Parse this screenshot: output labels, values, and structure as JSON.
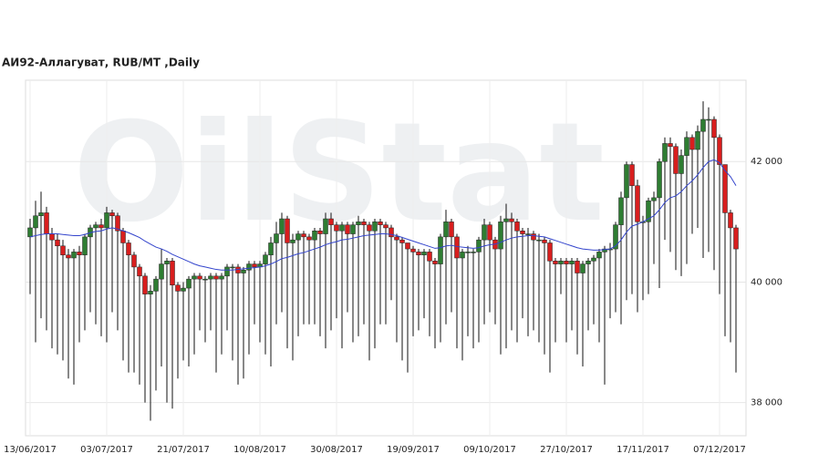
{
  "chart_data": {
    "type": "candlestick",
    "title": "АИ92-Аллагуват,  RUB/MT ,Daily",
    "watermark": "OilStat",
    "categories": [
      "13/06/2017",
      null,
      null,
      null,
      null,
      null,
      null,
      null,
      null,
      null,
      null,
      null,
      null,
      null,
      "03/07/2017",
      null,
      null,
      null,
      null,
      null,
      null,
      null,
      null,
      null,
      null,
      null,
      null,
      null,
      "21/07/2017",
      null,
      null,
      null,
      null,
      null,
      null,
      null,
      null,
      null,
      null,
      null,
      null,
      null,
      "10/08/2017",
      null,
      null,
      null,
      null,
      null,
      null,
      null,
      null,
      null,
      null,
      null,
      null,
      null,
      "30/08/2017",
      null,
      null,
      null,
      null,
      null,
      null,
      null,
      null,
      null,
      null,
      null,
      null,
      null,
      "19/09/2017",
      null,
      null,
      null,
      null,
      null,
      null,
      null,
      null,
      null,
      null,
      null,
      null,
      null,
      "09/10/2017",
      null,
      null,
      null,
      null,
      null,
      null,
      null,
      null,
      null,
      null,
      null,
      null,
      null,
      "27/10/2017",
      null,
      null,
      null,
      null,
      null,
      null,
      null,
      null,
      null,
      null,
      null,
      null,
      null,
      "17/11/2017",
      null,
      null,
      null,
      null,
      null,
      null,
      null,
      null,
      null,
      null,
      null,
      null,
      null,
      "07/12/2017",
      null,
      null,
      null
    ],
    "open": [
      40750,
      40900,
      41100,
      41150,
      40800,
      40700,
      40600,
      40450,
      40400,
      40500,
      40450,
      40750,
      40900,
      40950,
      40900,
      41150,
      41100,
      40850,
      40650,
      40450,
      40250,
      40100,
      39800,
      39850,
      40050,
      40300,
      40350,
      39950,
      39850,
      39900,
      40050,
      40100,
      40050,
      40050,
      40100,
      40050,
      40100,
      40250,
      40250,
      40150,
      40200,
      40300,
      40250,
      40300,
      40450,
      40650,
      40800,
      41050,
      40650,
      40700,
      40800,
      40750,
      40700,
      40850,
      40800,
      41050,
      40950,
      40850,
      40950,
      40800,
      40950,
      41000,
      40950,
      40850,
      41000,
      40950,
      40900,
      40750,
      40700,
      40650,
      40550,
      40500,
      40450,
      40500,
      40350,
      40300,
      40750,
      41000,
      40750,
      40400,
      40500,
      40500,
      40500,
      40700,
      40950,
      40700,
      40550,
      41000,
      41050,
      41000,
      40850,
      40800,
      40800,
      40700,
      40700,
      40650,
      40350,
      40300,
      40350,
      40300,
      40350,
      40150,
      40300,
      40350,
      40400,
      40500,
      40550,
      40550,
      40950,
      41400,
      41950,
      41600,
      41000,
      41000,
      41350,
      41400,
      42000,
      42300,
      42250,
      41800,
      42100,
      42400,
      42200,
      42500,
      42700,
      42700,
      42400,
      41950,
      41150,
      40900
    ],
    "high": [
      41050,
      41350,
      41500,
      41250,
      40900,
      40800,
      40700,
      40550,
      40550,
      40600,
      40800,
      40950,
      41000,
      41050,
      41250,
      41200,
      41150,
      40900,
      40700,
      40500,
      40300,
      40150,
      39950,
      40100,
      40550,
      40400,
      40400,
      40000,
      40000,
      40100,
      40150,
      40150,
      40100,
      40150,
      40150,
      40150,
      40300,
      40300,
      40300,
      40250,
      40350,
      40350,
      40350,
      40500,
      40750,
      41000,
      41150,
      41100,
      40800,
      40850,
      40850,
      40800,
      40900,
      40900,
      41150,
      41150,
      41000,
      41000,
      41000,
      41000,
      41100,
      41050,
      41000,
      41050,
      41050,
      41000,
      40950,
      40800,
      40750,
      40650,
      40600,
      40550,
      40550,
      40550,
      40400,
      40800,
      41200,
      41050,
      40800,
      40550,
      40600,
      40550,
      40750,
      41050,
      41000,
      40750,
      41100,
      41300,
      41150,
      41050,
      40900,
      40900,
      40850,
      40800,
      40750,
      40700,
      40400,
      40400,
      40400,
      40400,
      40400,
      40350,
      40400,
      40450,
      40550,
      40600,
      40650,
      41000,
      41500,
      42000,
      42000,
      41700,
      41100,
      41400,
      41500,
      42050,
      42400,
      42400,
      42300,
      42200,
      42500,
      42450,
      42600,
      43000,
      42900,
      42750,
      42450,
      41950,
      41200,
      40950
    ],
    "low": [
      39800,
      39000,
      39400,
      39200,
      38900,
      38800,
      38700,
      38400,
      38300,
      39000,
      39200,
      39500,
      39300,
      39100,
      39000,
      39500,
      39200,
      38700,
      38500,
      38500,
      38300,
      38000,
      37700,
      38200,
      38600,
      38000,
      37900,
      38400,
      38700,
      38600,
      38800,
      39200,
      39000,
      39200,
      38500,
      38800,
      39200,
      38700,
      38300,
      38400,
      38800,
      39300,
      39000,
      38800,
      38600,
      39300,
      39500,
      38900,
      38700,
      39100,
      39300,
      39300,
      39300,
      39100,
      38900,
      39200,
      39400,
      38900,
      39500,
      39000,
      39100,
      39300,
      38700,
      38900,
      39300,
      39300,
      39700,
      39000,
      38700,
      38500,
      39100,
      39200,
      39400,
      39100,
      38900,
      39000,
      39300,
      39500,
      38900,
      38700,
      39100,
      38900,
      39000,
      39300,
      39500,
      39300,
      38800,
      38900,
      39200,
      39000,
      39400,
      39100,
      39200,
      39000,
      38800,
      38500,
      39000,
      39800,
      39000,
      39200,
      38800,
      38600,
      39200,
      39300,
      39000,
      38300,
      39400,
      39500,
      39300,
      39700,
      39800,
      39500,
      39700,
      39800,
      40300,
      39900,
      40700,
      40500,
      40200,
      40100,
      40300,
      40800,
      40900,
      40400,
      40500,
      40200,
      39800,
      39100,
      39000,
      38500
    ],
    "close": [
      40900,
      41100,
      41150,
      40800,
      40700,
      40600,
      40450,
      40400,
      40500,
      40450,
      40750,
      40900,
      40950,
      40900,
      41150,
      41100,
      40850,
      40650,
      40450,
      40250,
      40100,
      39800,
      39850,
      40050,
      40300,
      40350,
      39950,
      39850,
      39900,
      40050,
      40100,
      40050,
      40050,
      40100,
      40050,
      40100,
      40250,
      40250,
      40150,
      40200,
      40300,
      40250,
      40300,
      40450,
      40650,
      40800,
      41050,
      40650,
      40700,
      40800,
      40750,
      40700,
      40850,
      40800,
      41050,
      40950,
      40850,
      40950,
      40800,
      40950,
      41000,
      40950,
      40850,
      41000,
      40950,
      40900,
      40750,
      40700,
      40650,
      40550,
      40500,
      40450,
      40500,
      40350,
      40300,
      40750,
      41000,
      40750,
      40400,
      40500,
      40500,
      40500,
      40700,
      40950,
      40700,
      40550,
      41000,
      41050,
      41000,
      40850,
      40800,
      40800,
      40700,
      40700,
      40650,
      40350,
      40300,
      40350,
      40300,
      40350,
      40150,
      40300,
      40350,
      40400,
      40500,
      40550,
      40550,
      40950,
      41400,
      41950,
      41600,
      41000,
      41000,
      41350,
      41400,
      42000,
      42300,
      42250,
      41800,
      42100,
      42400,
      42200,
      42500,
      42700,
      42700,
      42400,
      41950,
      41150,
      40900,
      40550
    ],
    "up_color": "#2e7d32",
    "down_color": "#d81e1e",
    "ma": {
      "color": "#3344cc",
      "values": [
        40750,
        40770,
        40790,
        40800,
        40800,
        40800,
        40790,
        40780,
        40770,
        40770,
        40790,
        40820,
        40840,
        40850,
        40880,
        40900,
        40880,
        40850,
        40820,
        40780,
        40740,
        40680,
        40630,
        40580,
        40550,
        40510,
        40460,
        40420,
        40380,
        40340,
        40300,
        40270,
        40250,
        40230,
        40210,
        40200,
        40200,
        40200,
        40210,
        40220,
        40230,
        40240,
        40250,
        40270,
        40300,
        40340,
        40390,
        40410,
        40440,
        40470,
        40490,
        40520,
        40550,
        40580,
        40620,
        40650,
        40670,
        40700,
        40710,
        40730,
        40750,
        40770,
        40780,
        40790,
        40800,
        40800,
        40790,
        40770,
        40740,
        40710,
        40680,
        40650,
        40620,
        40590,
        40560,
        40570,
        40600,
        40610,
        40590,
        40580,
        40570,
        40560,
        40570,
        40600,
        40620,
        40630,
        40660,
        40700,
        40730,
        40750,
        40760,
        40770,
        40770,
        40760,
        40750,
        40720,
        40690,
        40660,
        40630,
        40600,
        40570,
        40550,
        40540,
        40530,
        40530,
        40540,
        40550,
        40600,
        40700,
        40830,
        40930,
        40960,
        41000,
        41050,
        41100,
        41200,
        41320,
        41400,
        41430,
        41500,
        41600,
        41680,
        41780,
        41900,
        42000,
        42030,
        41980,
        41850,
        41750,
        41600
      ]
    },
    "ylim": [
      37450,
      43350
    ],
    "yticks": [
      {
        "value": 38000,
        "label": "38 000"
      },
      {
        "value": 40000,
        "label": "40 000"
      },
      {
        "value": 42000,
        "label": "42 000"
      }
    ],
    "grid": true
  }
}
